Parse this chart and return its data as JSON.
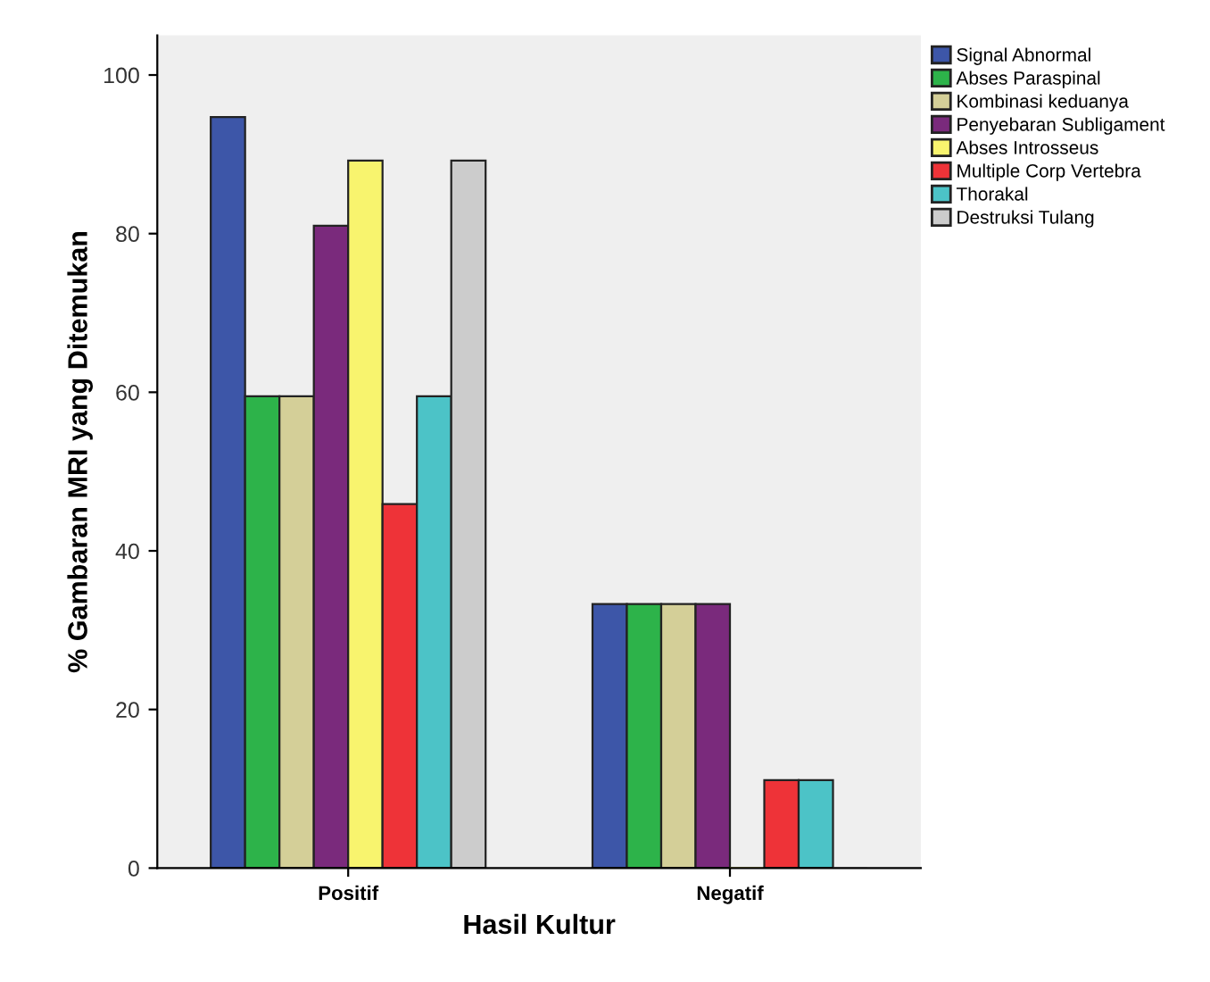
{
  "chart_data": {
    "type": "bar",
    "xlabel": "Hasil Kultur",
    "ylabel": "% Gambaran MRI yang Ditemukan",
    "categories": [
      "Positif",
      "Negatif"
    ],
    "series": [
      {
        "name": "Signal Abnormal",
        "color": "#3d56a8",
        "values": [
          94.7,
          33.3
        ]
      },
      {
        "name": "Abses Paraspinal",
        "color": "#2db34a",
        "values": [
          59.5,
          33.3
        ]
      },
      {
        "name": "Kombinasi keduanya",
        "color": "#d4cf98",
        "values": [
          59.5,
          33.3
        ]
      },
      {
        "name": "Penyebaran Subligament",
        "color": "#7a2a7c",
        "values": [
          81.0,
          33.3
        ]
      },
      {
        "name": "Abses Introsseus",
        "color": "#f8f46e",
        "values": [
          89.2,
          0
        ]
      },
      {
        "name": "Multiple Corp Vertebra",
        "color": "#ee3338",
        "values": [
          45.9,
          11.1
        ]
      },
      {
        "name": "Thorakal",
        "color": "#4cc3c7",
        "values": [
          59.5,
          11.1
        ]
      },
      {
        "name": "Destruksi Tulang",
        "color": "#cccccc",
        "values": [
          89.2,
          0
        ]
      }
    ],
    "ylim": [
      0,
      105
    ],
    "yticks": [
      0,
      20,
      40,
      60,
      80,
      100
    ],
    "grid": false,
    "legend": "top right"
  }
}
